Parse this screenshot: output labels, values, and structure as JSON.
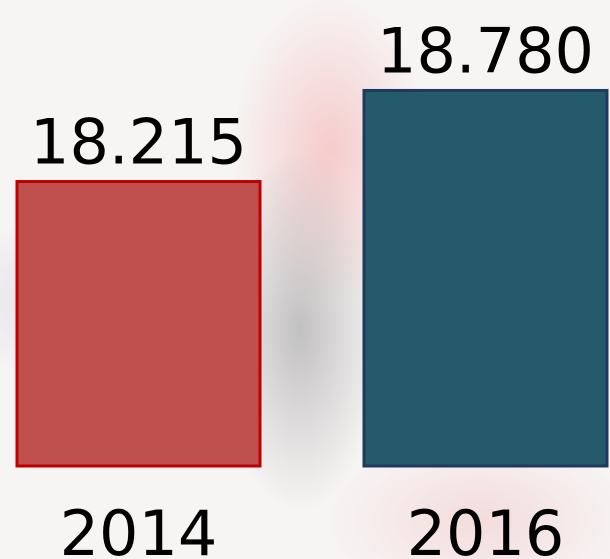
{
  "chart_data": {
    "type": "bar",
    "categories": [
      "2014",
      "2016"
    ],
    "values": [
      18.215,
      18.78
    ],
    "value_labels": [
      "18.215",
      "18.780"
    ],
    "colors": [
      "#c0504d",
      "#255a6a"
    ],
    "edge_colors": [
      "#c00000",
      "#1f3a5f"
    ],
    "ylim": [
      16.45,
      19.0
    ]
  }
}
